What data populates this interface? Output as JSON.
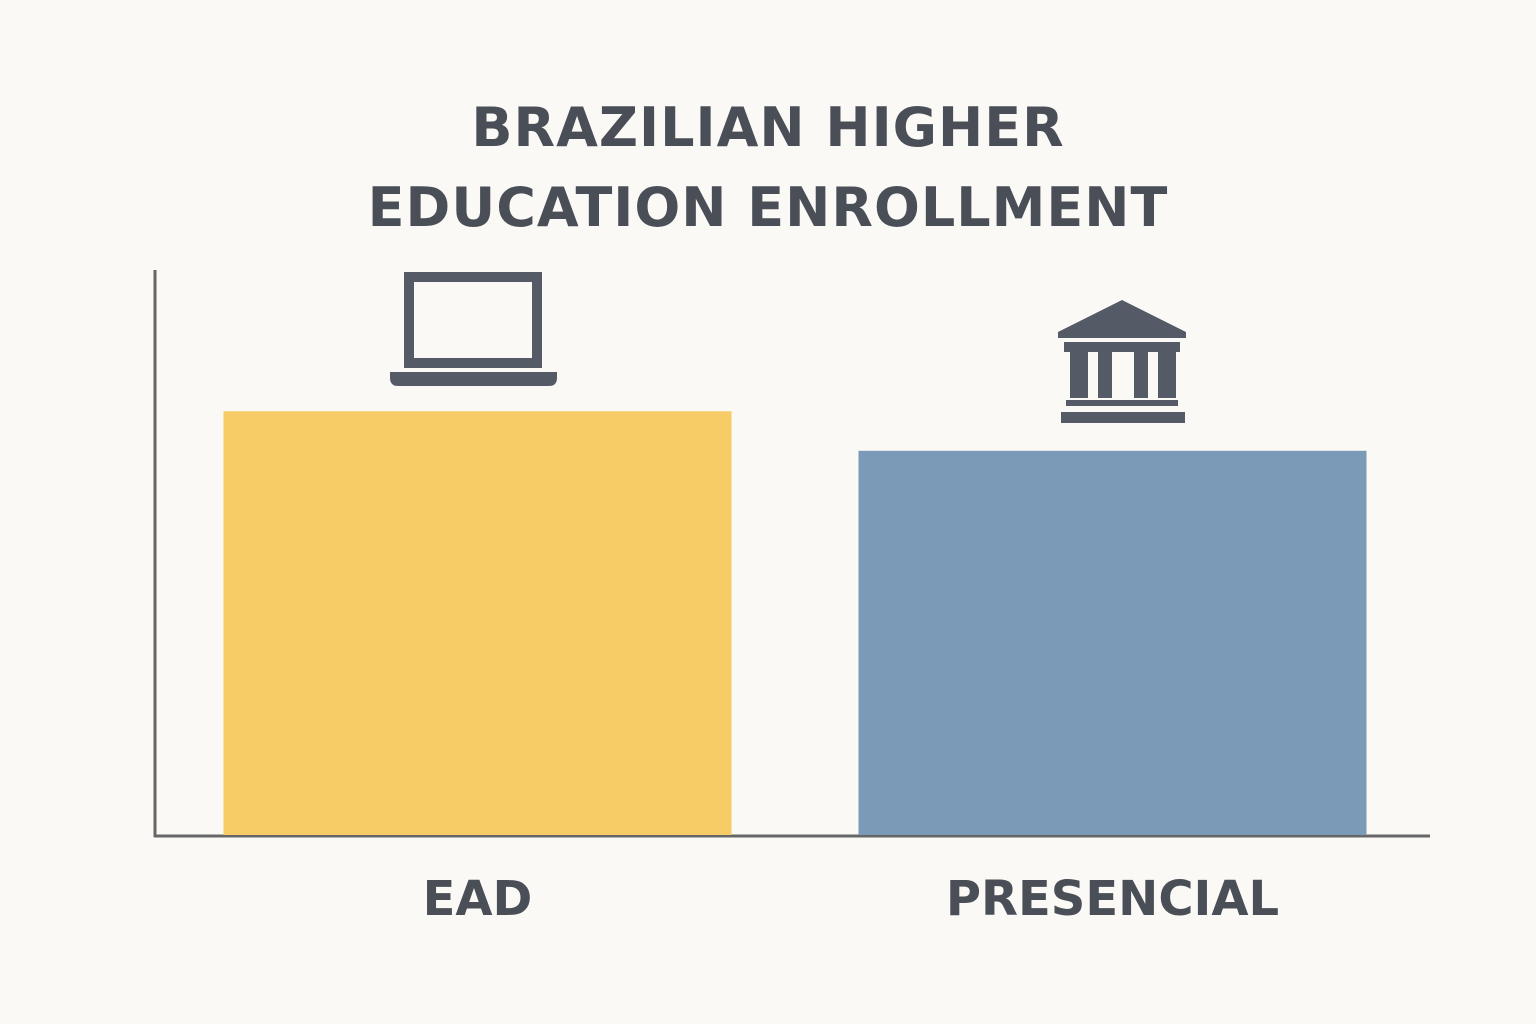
{
  "chart_data": {
    "type": "bar",
    "title": "BRAZILIAN HIGHER EDUCATION ENROLLMENT",
    "categories": [
      "EAD",
      "PRESENCIAL"
    ],
    "values": [
      75,
      68
    ],
    "colors": [
      "#f7cb65",
      "#7b9ab8"
    ],
    "ylim": [
      0,
      100
    ]
  }
}
